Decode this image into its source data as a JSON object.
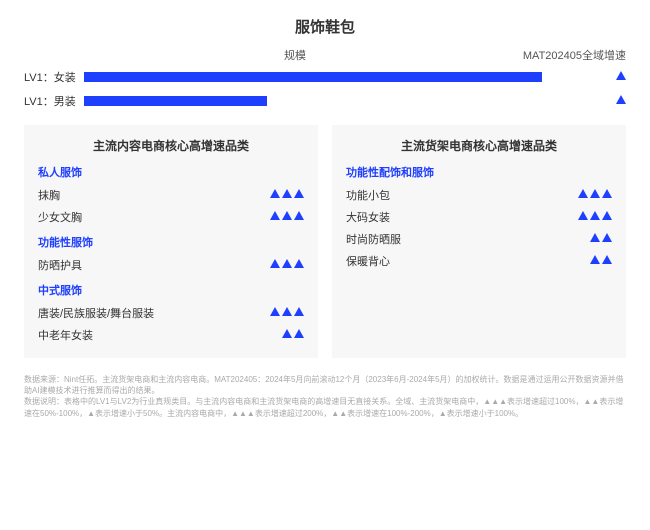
{
  "colors": {
    "brand_blue": "#1f3fff",
    "panel_bg": "#f7f7f7",
    "page_bg": "#ffffff",
    "footnote": "#aaaaaa"
  },
  "typography": {
    "title_fontsize": 15,
    "header_fontsize": 11,
    "panel_title_fontsize": 12,
    "item_fontsize": 11,
    "footnote_fontsize": 8
  },
  "title": "服饰鞋包",
  "columns": {
    "scale": "规模",
    "growth": "MAT202405全域增速"
  },
  "bars": {
    "max_width_pct": 100,
    "rows": [
      {
        "label": "LV1：女装",
        "value_pct": 95,
        "growth_triangles": 1
      },
      {
        "label": "LV1：男装",
        "value_pct": 38,
        "growth_triangles": 1
      }
    ]
  },
  "panel_left": {
    "title": "主流内容电商核心高增速品类",
    "groups": [
      {
        "name": "私人服饰",
        "items": [
          {
            "label": "抹胸",
            "tri": 3
          },
          {
            "label": "少女文胸",
            "tri": 3
          }
        ]
      },
      {
        "name": "功能性服饰",
        "items": [
          {
            "label": "防晒护具",
            "tri": 3
          }
        ]
      },
      {
        "name": "中式服饰",
        "items": [
          {
            "label": "唐装/民族服装/舞台服装",
            "tri": 3
          },
          {
            "label": "中老年女装",
            "tri": 2
          }
        ]
      }
    ]
  },
  "panel_right": {
    "title": "主流货架电商核心高增速品类",
    "groups": [
      {
        "name": "功能性配饰和服饰",
        "items": [
          {
            "label": "功能小包",
            "tri": 3
          },
          {
            "label": "大码女装",
            "tri": 3
          },
          {
            "label": "时尚防晒服",
            "tri": 2
          },
          {
            "label": "保暖背心",
            "tri": 2
          }
        ]
      }
    ]
  },
  "footnote": {
    "line1": "数据来源：Nint任拓。主流货架电商和主流内容电商。MAT202405：2024年5月向前滚动12个月（2023年6月-2024年5月）的加权统计。数据是通过运用公开数据资源并借助AI建模技术进行推算而得出的结果。",
    "line2": "数据说明：表格中的LV1与LV2为行业真规类目。与主流内容电商和主流货架电商的高增速目无直接关系。全域、主流货架电商中，▲▲▲表示增速超过100%，▲▲表示增速在50%-100%，▲表示增速小于50%。主流内容电商中，▲▲▲表示增速超过200%，▲▲表示增速在100%-200%，▲表示增速小于100%。"
  }
}
